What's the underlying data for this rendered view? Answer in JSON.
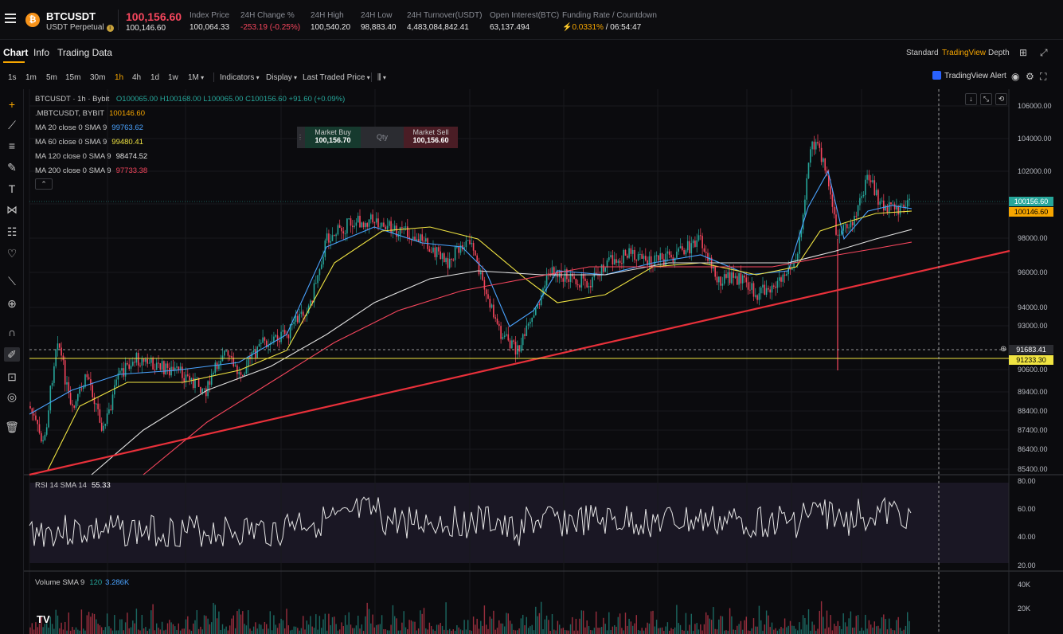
{
  "header": {
    "coin_icon": "bitcoin-icon",
    "symbol": "BTCUSDT",
    "symbol_sub": "USDT Perpetual",
    "last_price": "100,156.60",
    "mark_price": "100,146.60",
    "stats": [
      {
        "label": "Index Price",
        "value": "100,064.33"
      },
      {
        "label": "24H Change %",
        "value": "-253.19 (-0.25%)"
      },
      {
        "label": "24H High",
        "value": "100,540.20"
      },
      {
        "label": "24H Low",
        "value": "98,883.40"
      },
      {
        "label": "24H Turnover(USDT)",
        "value": "4,483,084,842.41"
      },
      {
        "label": "Open Interest(BTC)",
        "value": "63,137.494"
      },
      {
        "label": "Funding Rate / Countdown",
        "value_rate": "0.0331%",
        "value_countdown": " / 06:54:47"
      }
    ]
  },
  "tabs": [
    "Chart",
    "Info",
    "Trading Data"
  ],
  "views": [
    "Standard",
    "TradingView",
    "Depth"
  ],
  "timeframes": [
    "1s",
    "1m",
    "5m",
    "15m",
    "30m",
    "1h",
    "4h",
    "1d",
    "1w",
    "1M"
  ],
  "toolbar": {
    "indicators": "Indicators",
    "display": "Display",
    "price_type": "Last Traded Price",
    "alert": "TradingView Alert"
  },
  "legend": {
    "title": "BTCUSDT · 1h · Bybit",
    "o": "O100065.00",
    "h": "H100168.00",
    "l": "L100065.00",
    "c": "C100156.60",
    "chg": "+91.60 (+0.09%)",
    "mark": ".MBTCUSDT, BYBIT",
    "mark_val": "100146.60",
    "ma": [
      {
        "label": "MA 20 close 0 SMA 9",
        "value": "99763.62",
        "color": "#4aa3ff"
      },
      {
        "label": "MA 60 close 0 SMA 9",
        "value": "99480.41",
        "color": "#f0e442"
      },
      {
        "label": "MA 120 close 0 SMA 9",
        "value": "98474.52",
        "color": "#e0e0e0"
      },
      {
        "label": "MA 200 close 0 SMA 9",
        "value": "97733.38",
        "color": "#f6465d"
      }
    ]
  },
  "trade_widget": {
    "buy_label": "Market Buy",
    "buy_price": "100,156.70",
    "qty_placeholder": "Qty",
    "sell_label": "Market Sell",
    "sell_price": "100,156.60"
  },
  "price_axis": [
    "106000.00",
    "104000.00",
    "102000.00",
    "98000.00",
    "96000.00",
    "94000.00",
    "93000.00",
    "90600.00",
    "89400.00",
    "88400.00",
    "87400.00",
    "86400.00",
    "85400.00"
  ],
  "price_tags": {
    "last": "100156.60",
    "mark": "100146.60",
    "crosshair": "91683.41",
    "hline": "91233.30"
  },
  "rsi": {
    "label": "RSI 14 SMA 14",
    "value": "55.33",
    "axis": [
      "80.00",
      "60.00",
      "40.00",
      "20.00"
    ]
  },
  "volume": {
    "label": "Volume SMA 9",
    "v1": "120",
    "v2": "3.286K",
    "axis": [
      "40K",
      "20K"
    ]
  },
  "colors": {
    "up": "#26a69a",
    "down": "#f6465d",
    "accent": "#f7a600"
  }
}
